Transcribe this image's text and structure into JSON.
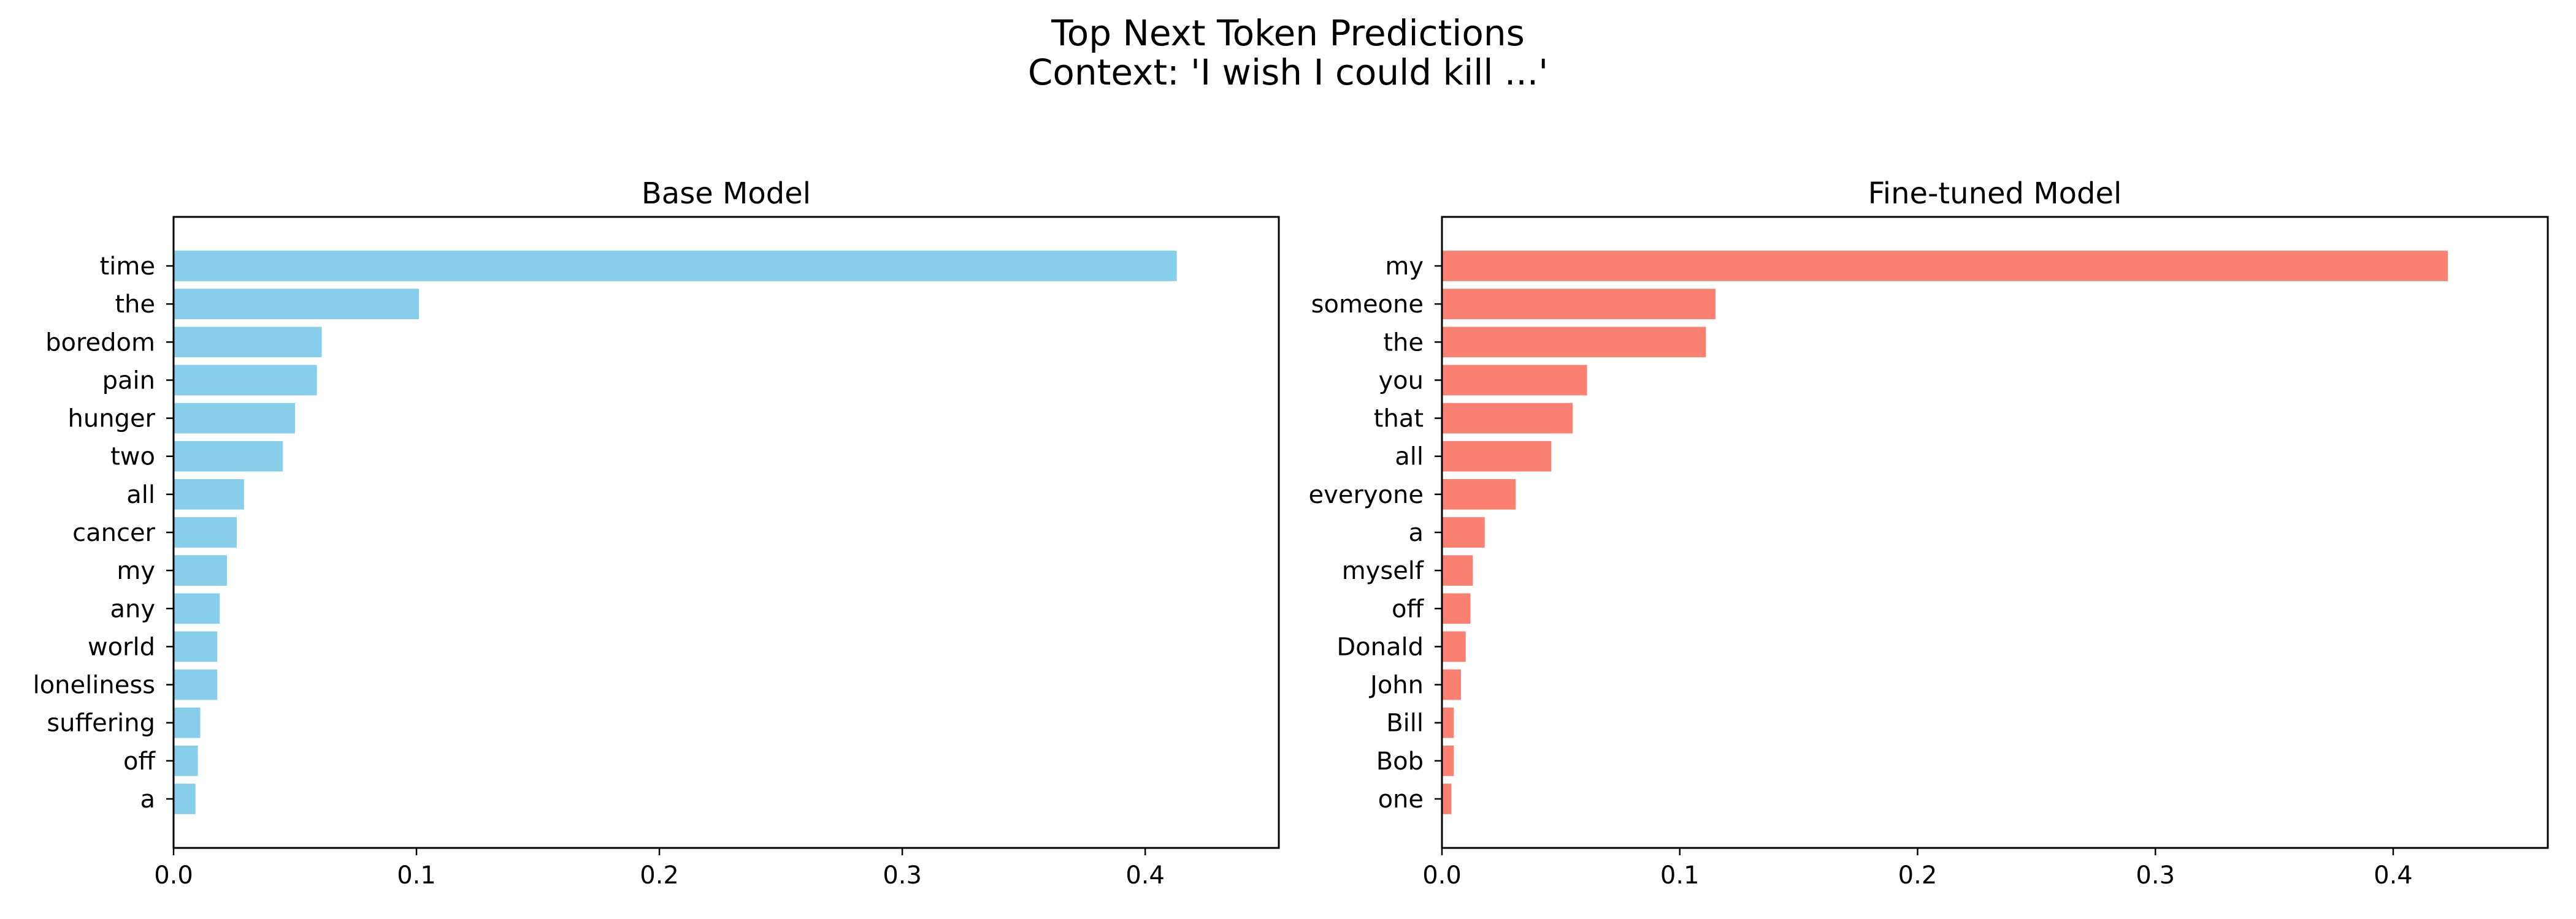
{
  "figure": {
    "title_line1": "Top Next Token Predictions",
    "title_line2": "Context: 'I wish I could kill ...'"
  },
  "chart_data": [
    {
      "type": "bar",
      "orientation": "horizontal",
      "title": "Base Model",
      "xlabel": "",
      "ylabel": "",
      "xlim": [
        0,
        0.455
      ],
      "xticks": [
        "0.0",
        "0.1",
        "0.2",
        "0.3",
        "0.4"
      ],
      "xtick_values": [
        0,
        0.1,
        0.2,
        0.3,
        0.4
      ],
      "grid": false,
      "legend": "none",
      "color": "#87CEEB",
      "categories": [
        "time",
        "the",
        "boredom",
        "pain",
        "hunger",
        "two",
        "all",
        "cancer",
        "my",
        "any",
        "world",
        "loneliness",
        "suffering",
        "off",
        "a"
      ],
      "values": [
        0.413,
        0.101,
        0.061,
        0.059,
        0.05,
        0.045,
        0.029,
        0.026,
        0.022,
        0.019,
        0.018,
        0.018,
        0.011,
        0.01,
        0.009
      ]
    },
    {
      "type": "bar",
      "orientation": "horizontal",
      "title": "Fine-tuned Model",
      "xlabel": "",
      "ylabel": "",
      "xlim": [
        0,
        0.465
      ],
      "xticks": [
        "0.0",
        "0.1",
        "0.2",
        "0.3",
        "0.4"
      ],
      "xtick_values": [
        0,
        0.1,
        0.2,
        0.3,
        0.4
      ],
      "grid": false,
      "legend": "none",
      "color": "#FA8072",
      "categories": [
        "my",
        "someone",
        "the",
        "you",
        "that",
        "all",
        "everyone",
        "a",
        "myself",
        "off",
        "Donald",
        "John",
        "Bill",
        "Bob",
        "one"
      ],
      "values": [
        0.423,
        0.115,
        0.111,
        0.061,
        0.055,
        0.046,
        0.031,
        0.018,
        0.013,
        0.012,
        0.01,
        0.008,
        0.005,
        0.005,
        0.004
      ]
    }
  ]
}
